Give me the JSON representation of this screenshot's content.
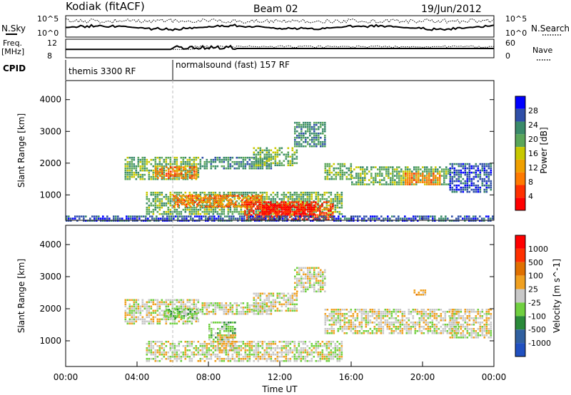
{
  "header": {
    "station": "Kodiak (fitACF)",
    "beam": "Beam 02",
    "date": "19/Jun/2012"
  },
  "aux": {
    "nsky_label": "N.Sky",
    "nsearch_label": "N.Search",
    "freq_label_1": "Freq.",
    "freq_label_2": "[MHz]",
    "nave_label": "Nave",
    "cpid_label": "CPID",
    "nsky_ticks": [
      "10^5",
      "10^0"
    ],
    "nsearch_ticks": [
      "10^5",
      "10^0"
    ],
    "freq_ticks": [
      "12",
      "8"
    ],
    "nave_ticks": [
      "60",
      "0"
    ],
    "cpid_blocks": [
      {
        "label": "themis 3300 RF",
        "start_hour": 0
      },
      {
        "label": "normalsound (fast) 157 RF",
        "start_hour": 6
      }
    ]
  },
  "colors": {
    "power": [
      "#0000ff",
      "#2f4fa8",
      "#3a8a6a",
      "#5aa65a",
      "#c8c800",
      "#f0a000",
      "#ff7a00",
      "#ff3000",
      "#ff0000"
    ],
    "velocity": [
      "#2050c0",
      "#3060a0",
      "#2a8a3a",
      "#70d040",
      "#c8c8c8",
      "#f0a020",
      "#e07000",
      "#ff3000",
      "#ff0000"
    ]
  },
  "chart_data": [
    {
      "type": "heatmap",
      "name": "Power",
      "ylabel": "Slant Range [km]",
      "xlabel": "Time UT",
      "x_ticks": [
        "00:00",
        "04:00",
        "08:00",
        "12:00",
        "16:00",
        "20:00",
        "00:00"
      ],
      "xlim": [
        0,
        24
      ],
      "ylim": [
        200,
        4600
      ],
      "y_ticks": [
        1000,
        2000,
        3000,
        4000
      ],
      "colorbar_label": "Power [dB]",
      "colorbar_ticks": [
        4,
        8,
        12,
        16,
        20,
        24,
        28
      ],
      "bands": [
        {
          "t0": 3.3,
          "t1": 7.5,
          "r0": 1500,
          "r1": 2200,
          "level": 3
        },
        {
          "t0": 5.0,
          "t1": 7.4,
          "r0": 1500,
          "r1": 1900,
          "level": 6
        },
        {
          "t0": 7.5,
          "t1": 11.5,
          "r0": 1800,
          "r1": 2200,
          "level": 2
        },
        {
          "t0": 10.5,
          "t1": 13.0,
          "r0": 1900,
          "r1": 2500,
          "level": 3
        },
        {
          "t0": 12.8,
          "t1": 14.5,
          "r0": 2500,
          "r1": 3300,
          "level": 2
        },
        {
          "t0": 14.5,
          "t1": 16.0,
          "r0": 1500,
          "r1": 2000,
          "level": 3
        },
        {
          "t0": 16.0,
          "t1": 21.5,
          "r0": 1300,
          "r1": 1900,
          "level": 3
        },
        {
          "t0": 19.0,
          "t1": 21.0,
          "r0": 1300,
          "r1": 1700,
          "level": 6
        },
        {
          "t0": 4.5,
          "t1": 15.5,
          "r0": 400,
          "r1": 1100,
          "level": 3
        },
        {
          "t0": 6.0,
          "t1": 11.0,
          "r0": 600,
          "r1": 1000,
          "level": 6
        },
        {
          "t0": 10.0,
          "t1": 15.0,
          "r0": 250,
          "r1": 800,
          "level": 7
        },
        {
          "t0": 11.0,
          "t1": 14.0,
          "r0": 300,
          "r1": 700,
          "level": 8
        },
        {
          "t0": 0.0,
          "t1": 24.0,
          "r0": 200,
          "r1": 350,
          "level": 1
        },
        {
          "t0": 21.5,
          "t1": 23.8,
          "r0": 1100,
          "r1": 2000,
          "level": 1
        }
      ]
    },
    {
      "type": "heatmap",
      "name": "Velocity",
      "ylabel": "Slant Range [km]",
      "xlabel": "Time UT",
      "x_ticks": [
        "00:00",
        "04:00",
        "08:00",
        "12:00",
        "16:00",
        "20:00",
        "00:00"
      ],
      "xlim": [
        0,
        24
      ],
      "ylim": [
        200,
        4600
      ],
      "y_ticks": [
        1000,
        2000,
        3000,
        4000
      ],
      "colorbar_label": "Velocity [m s^-1]",
      "colorbar_ticks": [
        1000,
        500,
        100,
        25,
        -25,
        -100,
        -500,
        -1000
      ],
      "bands": [
        {
          "t0": 3.3,
          "t1": 7.5,
          "r0": 1500,
          "r1": 2300,
          "level": 4
        },
        {
          "t0": 5.5,
          "t1": 7.4,
          "r0": 1700,
          "r1": 2000,
          "level": 3
        },
        {
          "t0": 7.5,
          "t1": 11.5,
          "r0": 1800,
          "r1": 2200,
          "level": 4
        },
        {
          "t0": 8.0,
          "t1": 9.5,
          "r0": 1000,
          "r1": 1600,
          "level": 3
        },
        {
          "t0": 8.5,
          "t1": 9.5,
          "r0": 700,
          "r1": 1200,
          "level": 5
        },
        {
          "t0": 10.5,
          "t1": 13.0,
          "r0": 1900,
          "r1": 2500,
          "level": 4
        },
        {
          "t0": 12.8,
          "t1": 14.5,
          "r0": 2500,
          "r1": 3300,
          "level": 4
        },
        {
          "t0": 14.5,
          "t1": 22.0,
          "r0": 1200,
          "r1": 2000,
          "level": 4
        },
        {
          "t0": 4.5,
          "t1": 15.5,
          "r0": 350,
          "r1": 1000,
          "level": 4
        },
        {
          "t0": 21.5,
          "t1": 23.8,
          "r0": 1100,
          "r1": 2000,
          "level": 4
        },
        {
          "t0": 19.5,
          "t1": 20.3,
          "r0": 2400,
          "r1": 2600,
          "level": 5
        }
      ]
    }
  ]
}
